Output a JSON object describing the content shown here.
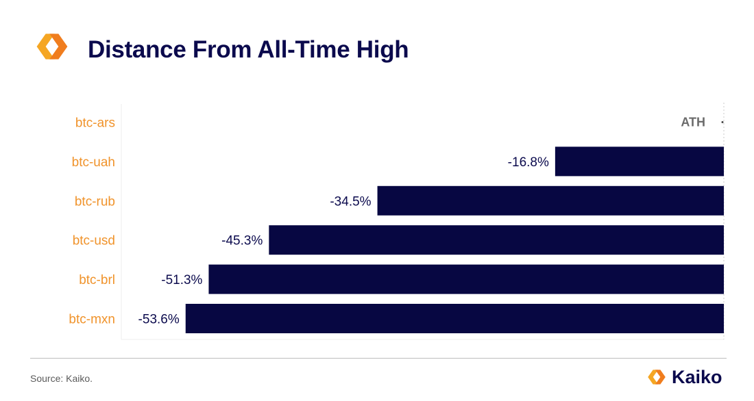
{
  "title": "Distance From All-Time High",
  "source": "Source: Kaiko.",
  "brand": {
    "name": "Kaiko",
    "icon": "kaiko-logo-icon"
  },
  "colors": {
    "bar": "#070742",
    "category": "#f0932b",
    "title": "#0b0a4d",
    "ath": "#6b6b6b"
  },
  "chart_data": {
    "type": "bar",
    "orientation": "horizontal",
    "categories": [
      "btc-ars",
      "btc-uah",
      "btc-rub",
      "btc-usd",
      "btc-brl",
      "btc-mxn"
    ],
    "values": [
      0,
      -16.8,
      -34.5,
      -45.3,
      -51.3,
      -53.6
    ],
    "value_labels": [
      "ATH",
      "-16.8%",
      "-34.5%",
      "-45.3%",
      "-51.3%",
      "-53.6%"
    ],
    "xlim": [
      -60,
      0
    ],
    "grid": false,
    "legend": "none"
  }
}
